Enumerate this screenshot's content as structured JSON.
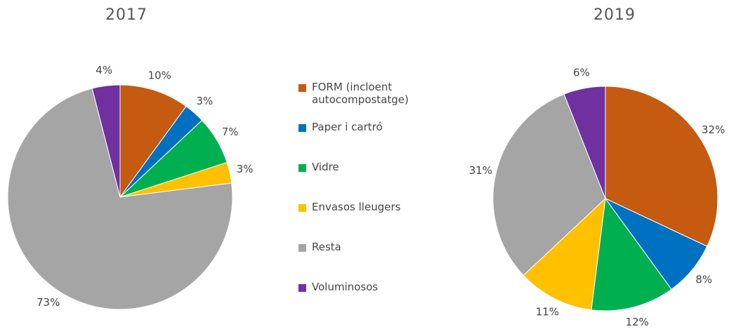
{
  "chart_data": [
    {
      "type": "pie",
      "title": "2017",
      "categories": [
        "FORM (incloent autocompostatge)",
        "Paper i cartró",
        "Vidre",
        "Envasos lleugers",
        "Resta",
        "Voluminosos"
      ],
      "values": [
        10,
        3,
        7,
        3,
        73,
        4
      ],
      "value_labels": [
        "10%",
        "3%",
        "7%",
        "3%",
        "73%",
        "4%"
      ],
      "colors": [
        "#c55a11",
        "#0070c0",
        "#00b050",
        "#ffc000",
        "#a5a5a5",
        "#7030a0"
      ]
    },
    {
      "type": "pie",
      "title": "2019",
      "categories": [
        "FORM (incloent autocompostatge)",
        "Paper i cartró",
        "Vidre",
        "Envasos lleugers",
        "Resta",
        "Voluminosos"
      ],
      "values": [
        32,
        8,
        12,
        11,
        31,
        6
      ],
      "value_labels": [
        "32%",
        "8%",
        "12%",
        "11%",
        "31%",
        "6%"
      ],
      "colors": [
        "#c55a11",
        "#0070c0",
        "#00b050",
        "#ffc000",
        "#a5a5a5",
        "#7030a0"
      ]
    }
  ]
}
